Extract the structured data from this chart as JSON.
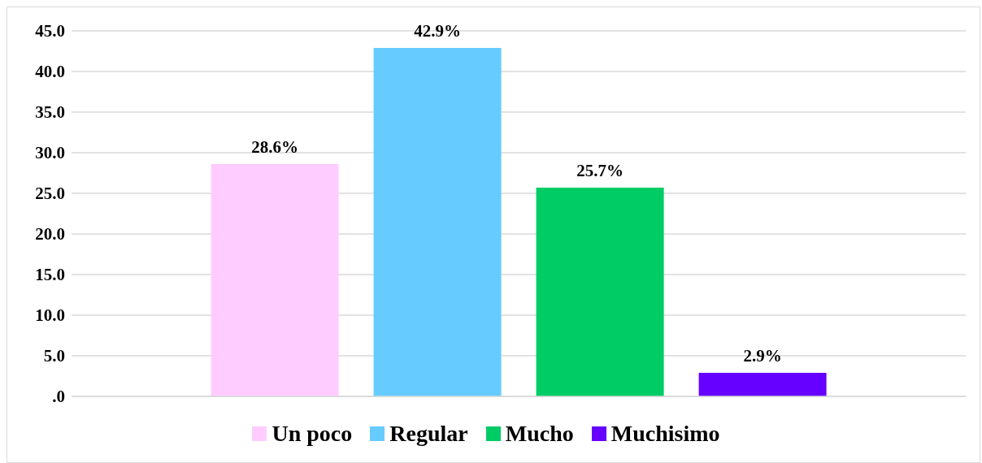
{
  "chart_data": {
    "type": "bar",
    "categories": [
      null
    ],
    "series": [
      {
        "name": "Un poco",
        "color": "#ffccff",
        "values": [
          28.6
        ],
        "value_labels": [
          "28.6%"
        ]
      },
      {
        "name": "Regular",
        "color": "#66ccff",
        "values": [
          42.9
        ],
        "value_labels": [
          "42.9%"
        ]
      },
      {
        "name": "Mucho",
        "color": "#00cc66",
        "values": [
          25.7
        ],
        "value_labels": [
          "25.7%"
        ]
      },
      {
        "name": "Muchisimo",
        "color": "#6600ff",
        "values": [
          2.9
        ],
        "value_labels": [
          "2.9%"
        ]
      }
    ],
    "ylim": [
      0,
      45
    ],
    "yticks": [
      {
        "value": 0,
        "label": ".0"
      },
      {
        "value": 5,
        "label": "5.0"
      },
      {
        "value": 10,
        "label": "10.0"
      },
      {
        "value": 15,
        "label": "15.0"
      },
      {
        "value": 20,
        "label": "20.0"
      },
      {
        "value": 25,
        "label": "25.0"
      },
      {
        "value": 30,
        "label": "30.0"
      },
      {
        "value": 35,
        "label": "35.0"
      },
      {
        "value": 40,
        "label": "40.0"
      },
      {
        "value": 45,
        "label": "45.0"
      }
    ],
    "grid": "y",
    "legend": "bottom"
  }
}
